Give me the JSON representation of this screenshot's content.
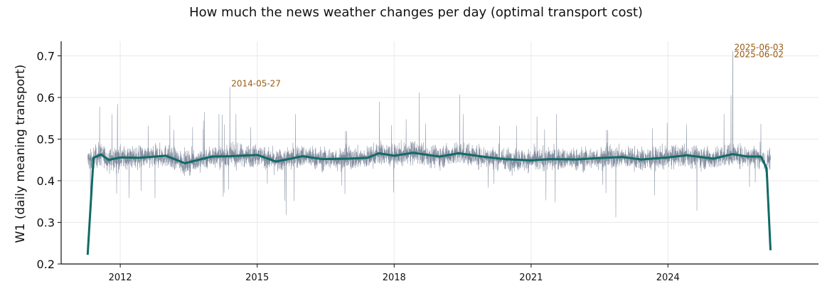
{
  "chart_data": {
    "type": "line",
    "title": "How much the news weather changes per day (optimal transport cost)",
    "xlabel": "",
    "ylabel": "W1 (daily meaning transport)",
    "x_range": [
      "2010-09-15",
      "2027-04-20"
    ],
    "ylim": [
      0.2,
      0.735
    ],
    "x_ticks": [
      "2012",
      "2015",
      "2018",
      "2021",
      "2024"
    ],
    "y_ticks": [
      "0.2",
      "0.3",
      "0.4",
      "0.5",
      "0.6",
      "0.7"
    ],
    "grid": true,
    "legend": "none",
    "colors": {
      "daily": "#7d879a",
      "smooth": "#0f6b66",
      "annotation": "#9a5b12"
    },
    "series": [
      {
        "role": "daily",
        "x_start": "2011-04-15",
        "x_end": "2026-04-01",
        "typical_range": [
          0.38,
          0.52
        ],
        "spikes": [
          {
            "x": "2011-07-20",
            "y": 0.578
          },
          {
            "x": "2011-12-10",
            "y": 0.585
          },
          {
            "x": "2013-11-05",
            "y": 0.565
          },
          {
            "x": "2014-05-27",
            "y": 0.625
          },
          {
            "x": "2015-08-20",
            "y": 0.318
          },
          {
            "x": "2017-09-05",
            "y": 0.59
          },
          {
            "x": "2018-07-20",
            "y": 0.612
          },
          {
            "x": "2019-06-10",
            "y": 0.607
          },
          {
            "x": "2022-11-10",
            "y": 0.312
          },
          {
            "x": "2024-08-20",
            "y": 0.328
          },
          {
            "x": "2025-05-20",
            "y": 0.605
          },
          {
            "x": "2025-06-02",
            "y": 0.695
          },
          {
            "x": "2025-06-03",
            "y": 0.712
          }
        ]
      },
      {
        "role": "smooth",
        "x": [
          "2011-04-15",
          "2011-06-01",
          "2011-08-01",
          "2011-10-01",
          "2012-01-01",
          "2012-06-01",
          "2013-01-01",
          "2013-06-01",
          "2014-01-01",
          "2014-06-01",
          "2015-01-01",
          "2015-06-01",
          "2016-01-01",
          "2016-06-01",
          "2017-01-01",
          "2017-06-01",
          "2017-09-01",
          "2018-01-01",
          "2018-06-01",
          "2019-01-01",
          "2019-06-01",
          "2020-01-01",
          "2020-06-01",
          "2021-01-01",
          "2021-06-01",
          "2022-01-01",
          "2022-06-01",
          "2023-01-01",
          "2023-06-01",
          "2024-01-01",
          "2024-06-01",
          "2025-01-01",
          "2025-06-01",
          "2025-10-01",
          "2026-01-15",
          "2026-03-01",
          "2026-04-01"
        ],
        "y": [
          0.222,
          0.455,
          0.463,
          0.45,
          0.456,
          0.455,
          0.46,
          0.442,
          0.458,
          0.459,
          0.462,
          0.446,
          0.459,
          0.452,
          0.453,
          0.455,
          0.466,
          0.46,
          0.467,
          0.458,
          0.466,
          0.457,
          0.452,
          0.449,
          0.452,
          0.451,
          0.454,
          0.457,
          0.451,
          0.456,
          0.461,
          0.453,
          0.464,
          0.458,
          0.458,
          0.43,
          0.233
        ]
      }
    ],
    "annotations": [
      {
        "label": "2014-05-27",
        "x": "2014-05-27",
        "y": 0.625
      },
      {
        "label": "2025-06-03",
        "x": "2025-06-03",
        "y": 0.712
      },
      {
        "label": "2025-06-02",
        "x": "2025-06-02",
        "y": 0.695
      }
    ]
  }
}
